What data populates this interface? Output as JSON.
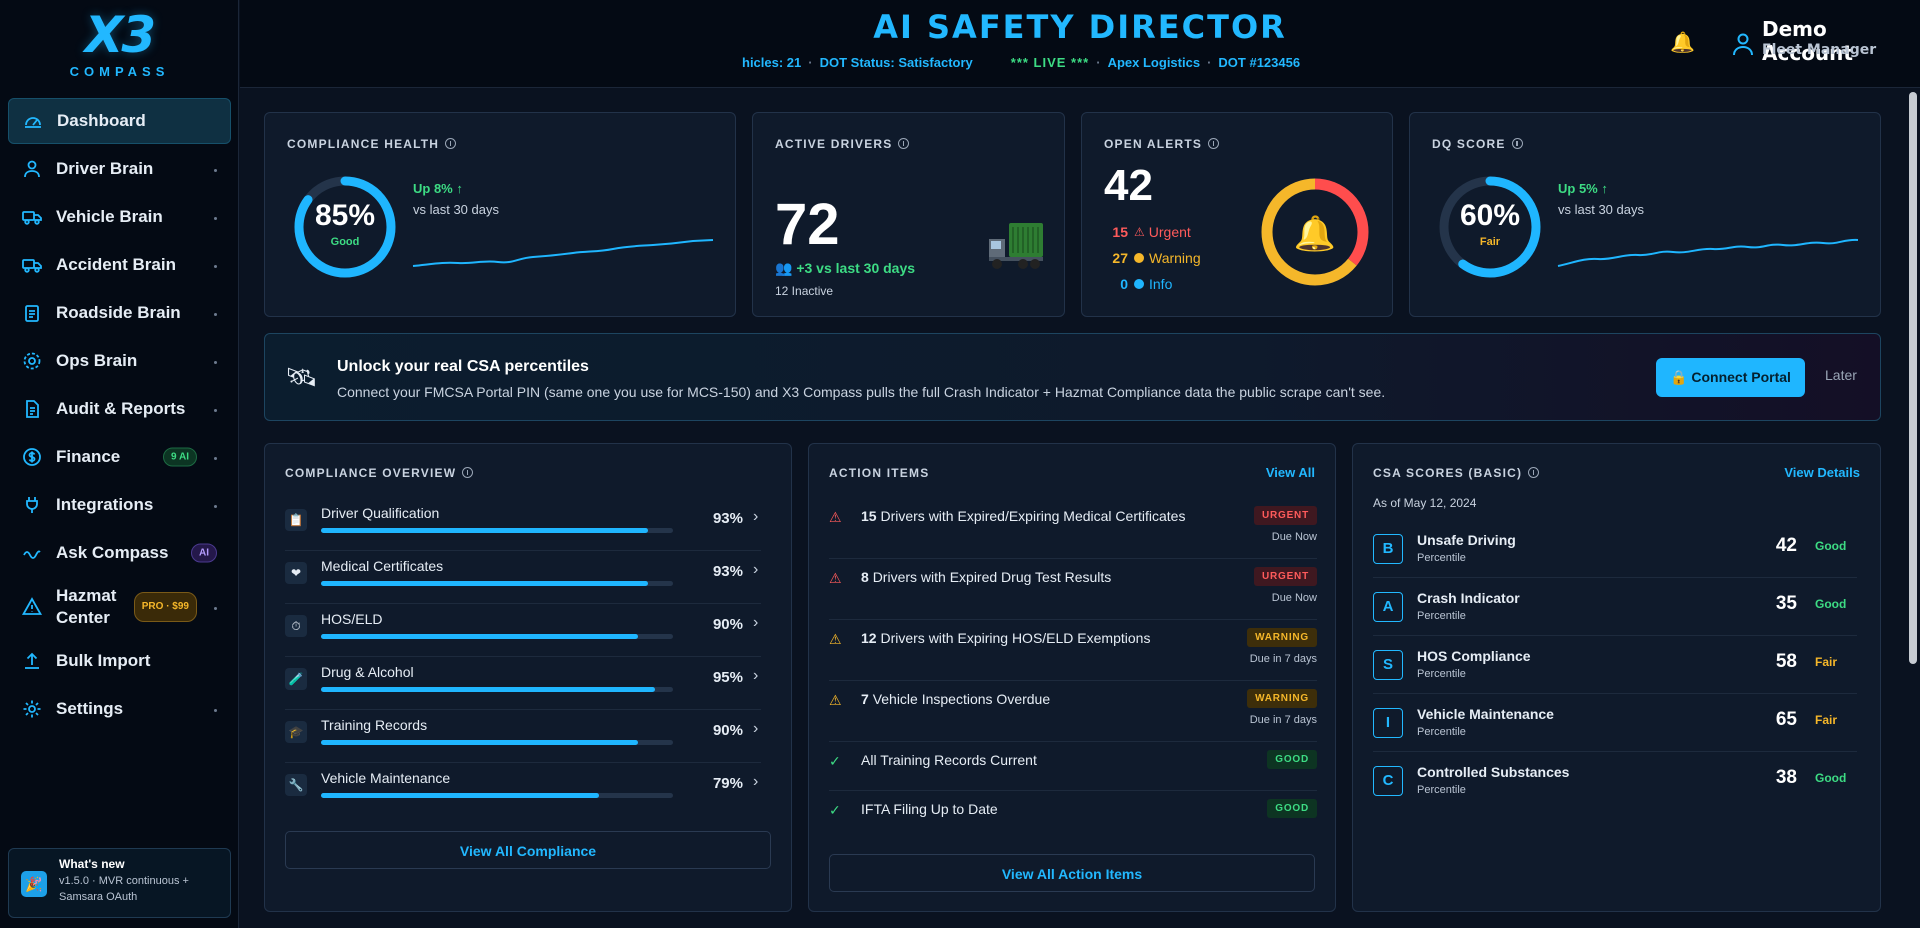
{
  "brand": {
    "mark": "X3",
    "sub": "COMPASS"
  },
  "header": {
    "title": "AI SAFETY DIRECTOR",
    "ticker": {
      "vehicles": "hicles: 21",
      "dot_status": "DOT Status: Satisfactory",
      "live": "*** LIVE ***",
      "company": "Apex Logistics",
      "dot_number": "DOT #123456"
    },
    "user": {
      "name": "Demo Account",
      "role": "Fleet Manager"
    }
  },
  "sidebar": {
    "items": [
      {
        "label": "Dashboard",
        "icon": "gauge-icon"
      },
      {
        "label": "Driver Brain",
        "icon": "user-icon"
      },
      {
        "label": "Vehicle Brain",
        "icon": "truck-icon"
      },
      {
        "label": "Accident Brain",
        "icon": "truck-icon"
      },
      {
        "label": "Roadside Brain",
        "icon": "clipboard-icon"
      },
      {
        "label": "Ops Brain",
        "icon": "gear-icon"
      },
      {
        "label": "Audit & Reports",
        "icon": "document-icon"
      },
      {
        "label": "Finance",
        "icon": "dollar-icon",
        "badge": "9 AI"
      },
      {
        "label": "Integrations",
        "icon": "plug-icon"
      },
      {
        "label": "Ask Compass",
        "icon": "spark-icon",
        "badge": "AI"
      },
      {
        "label": "Hazmat Center",
        "icon": "hazard-icon",
        "badge": "PRO · $99"
      },
      {
        "label": "Bulk Import",
        "icon": "upload-icon"
      },
      {
        "label": "Settings",
        "icon": "gear-icon"
      }
    ],
    "whats_new": {
      "title": "What's new",
      "text": "v1.5.0 · MVR continuous + Samsara OAuth"
    }
  },
  "kpis": {
    "compliance_health": {
      "title": "COMPLIANCE HEALTH",
      "value": "85%",
      "fraction": 0.85,
      "label": "Good",
      "trend": "Up 8% ↑",
      "trend_sub": "vs last 30 days"
    },
    "active_drivers": {
      "title": "ACTIVE DRIVERS",
      "value": "72",
      "delta": "+3 vs last 30 days",
      "inactive": "12 Inactive"
    },
    "open_alerts": {
      "title": "OPEN ALERTS",
      "value": "42",
      "rows": [
        {
          "count": "15",
          "label": "Urgent",
          "color": "#ff5b5b",
          "n": 15
        },
        {
          "count": "27",
          "label": "Warning",
          "color": "#f5b72a",
          "n": 27
        },
        {
          "count": "0",
          "label": "Info",
          "color": "#1fb6ff",
          "n": 0
        }
      ]
    },
    "dq_score": {
      "title": "DQ SCORE",
      "value": "60%",
      "fraction": 0.6,
      "label": "Fair",
      "trend": "Up 5% ↑",
      "trend_sub": "vs last 30 days"
    }
  },
  "banner": {
    "title": "Unlock your real CSA percentiles",
    "text": "Connect your FMCSA Portal PIN (same one you use for MCS-150) and X3 Compass pulls the full Crash Indicator + Hazmat Compliance data the public scrape can't see.",
    "connect_label": "🔒 Connect Portal",
    "later_label": "Later"
  },
  "compliance": {
    "title": "COMPLIANCE OVERVIEW",
    "items": [
      {
        "name": "Driver Qualification",
        "pct": "93%",
        "fraction": 0.93,
        "icon": "📋"
      },
      {
        "name": "Medical Certificates",
        "pct": "93%",
        "fraction": 0.93,
        "icon": "❤"
      },
      {
        "name": "HOS/ELD",
        "pct": "90%",
        "fraction": 0.9,
        "icon": "⏱"
      },
      {
        "name": "Drug & Alcohol",
        "pct": "95%",
        "fraction": 0.95,
        "icon": "🧪"
      },
      {
        "name": "Training Records",
        "pct": "90%",
        "fraction": 0.9,
        "icon": "🎓"
      },
      {
        "name": "Vehicle Maintenance",
        "pct": "79%",
        "fraction": 0.79,
        "icon": "🔧"
      }
    ],
    "view_all": "View All Compliance"
  },
  "actions": {
    "title": "ACTION ITEMS",
    "view_all_link": "View All",
    "items": [
      {
        "count": "15",
        "text": "Drivers with Expired/Expiring Medical Certificates",
        "badge": "URGENT",
        "due": "Due Now",
        "level": "urgent"
      },
      {
        "count": "8",
        "text": "Drivers with Expired Drug Test Results",
        "badge": "URGENT",
        "due": "Due Now",
        "level": "urgent"
      },
      {
        "count": "12",
        "text": "Drivers with Expiring HOS/ELD Exemptions",
        "badge": "WARNING",
        "due": "Due in 7 days",
        "level": "warning"
      },
      {
        "count": "7",
        "text": "Vehicle Inspections Overdue",
        "badge": "WARNING",
        "due": "Due in 7 days",
        "level": "warning"
      },
      {
        "count": "",
        "text": "All Training Records Current",
        "badge": "GOOD",
        "due": "",
        "level": "good"
      },
      {
        "count": "",
        "text": "IFTA Filing Up to Date",
        "badge": "GOOD",
        "due": "",
        "level": "good"
      }
    ],
    "view_all": "View All Action Items"
  },
  "csa": {
    "title": "CSA SCORES (BASIC)",
    "view_details": "View Details",
    "as_of": "As of May 12, 2024",
    "items": [
      {
        "letter": "B",
        "name": "Unsafe Driving",
        "sub": "Percentile",
        "score": "42",
        "rating": "Good"
      },
      {
        "letter": "A",
        "name": "Crash Indicator",
        "sub": "Percentile",
        "score": "35",
        "rating": "Good"
      },
      {
        "letter": "S",
        "name": "HOS Compliance",
        "sub": "Percentile",
        "score": "58",
        "rating": "Fair"
      },
      {
        "letter": "I",
        "name": "Vehicle Maintenance",
        "sub": "Percentile",
        "score": "65",
        "rating": "Fair"
      },
      {
        "letter": "C",
        "name": "Controlled Substances",
        "sub": "Percentile",
        "score": "38",
        "rating": "Good"
      }
    ]
  },
  "colors": {
    "accent": "#22b8ff",
    "good": "#3ddc84",
    "fair": "#f5b72a",
    "urgent": "#ff5b5b"
  }
}
